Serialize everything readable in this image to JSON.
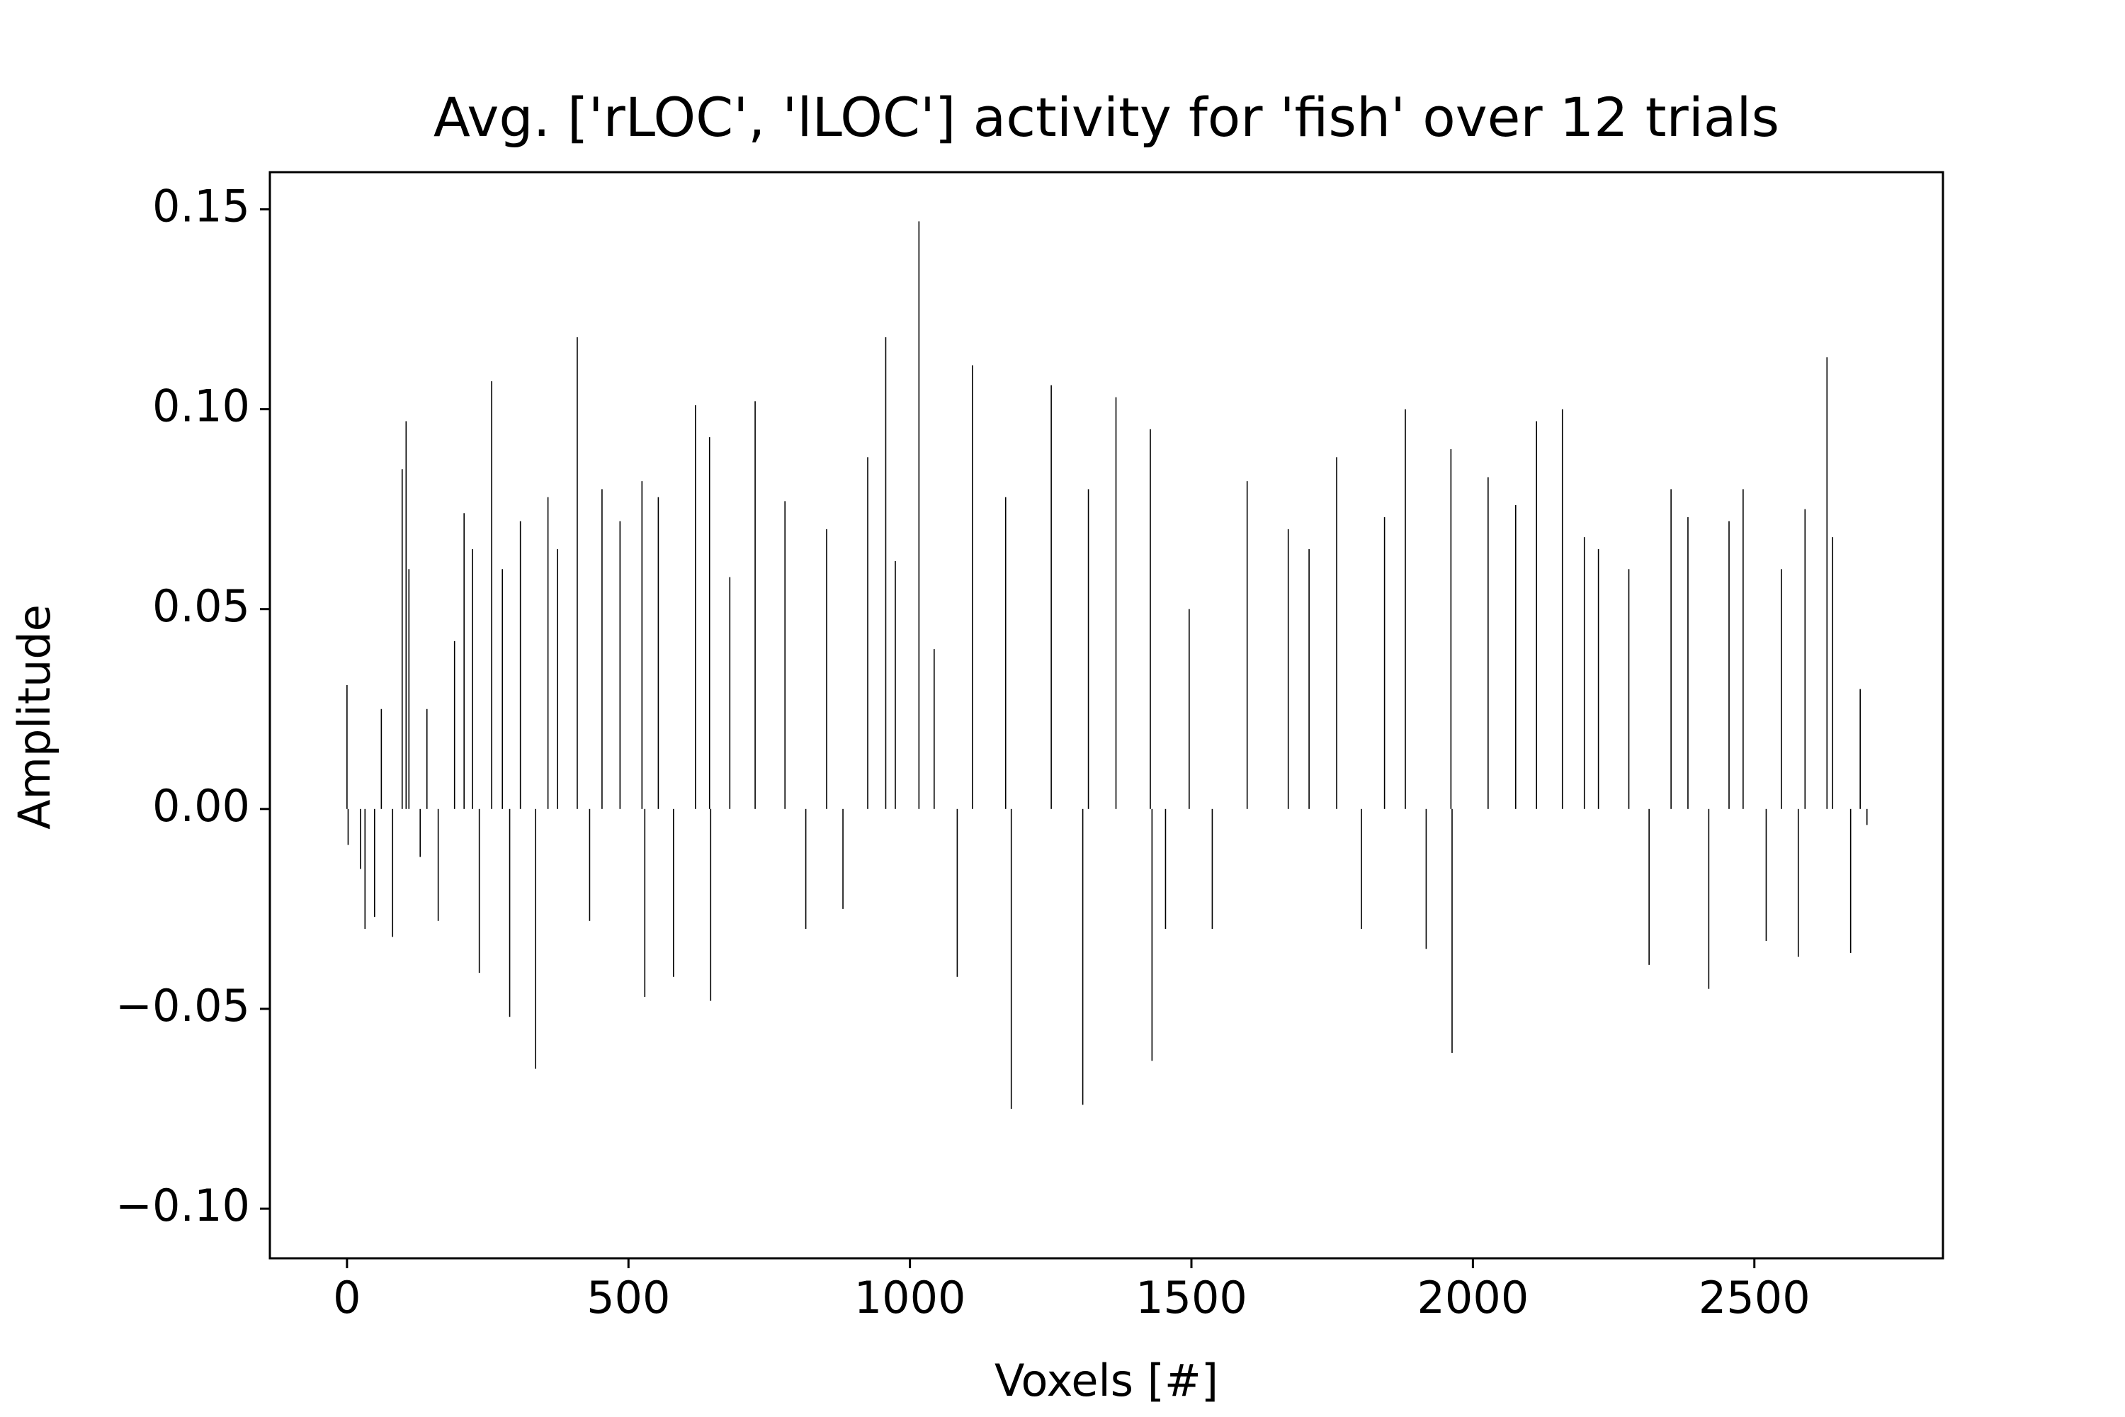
{
  "chart_data": {
    "type": "bar",
    "title": "Avg. ['rLOC', 'lLOC'] activity for 'fish' over 12 trials",
    "xlabel": "Voxels [#]",
    "ylabel": "Amplitude",
    "color": "#000000",
    "grid": false,
    "xlim": [
      -137,
      2835
    ],
    "ylim": [
      -0.1124,
      0.1593
    ],
    "xticks": [
      0,
      500,
      1000,
      1500,
      2000,
      2500
    ],
    "yticks": [
      {
        "value": -0.1,
        "label": "−0.10"
      },
      {
        "value": -0.05,
        "label": "−0.05"
      },
      {
        "value": 0,
        "label": "0.00"
      },
      0.05,
      {
        "value": 0.1,
        "label": "0.10"
      },
      0.15
    ],
    "x": [
      0,
      2,
      24,
      32,
      49,
      61,
      81,
      98,
      105,
      110,
      130,
      142,
      162,
      191,
      208,
      223,
      235,
      257,
      276,
      289,
      308,
      335,
      357,
      374,
      409,
      431,
      453,
      485,
      524,
      529,
      553,
      580,
      619,
      644,
      646,
      680,
      725,
      778,
      815,
      852,
      881,
      925,
      957,
      974,
      1016,
      1043,
      1084,
      1111,
      1170,
      1180,
      1251,
      1307,
      1317,
      1366,
      1427,
      1430,
      1454,
      1496,
      1537,
      1599,
      1672,
      1709,
      1758,
      1802,
      1843,
      1880,
      1917,
      1961,
      1963,
      2027,
      2076,
      2113,
      2159,
      2198,
      2223,
      2277,
      2313,
      2352,
      2382,
      2419,
      2455,
      2480,
      2521,
      2548,
      2578,
      2590,
      2629,
      2639,
      2671,
      2688,
      2700
    ],
    "values": [
      0.031,
      -0.009,
      -0.015,
      -0.03,
      -0.027,
      0.025,
      -0.032,
      0.085,
      0.097,
      0.06,
      -0.012,
      0.025,
      -0.028,
      0.042,
      0.074,
      0.065,
      -0.041,
      0.107,
      0.06,
      -0.052,
      0.072,
      -0.065,
      0.078,
      0.065,
      0.118,
      -0.028,
      0.08,
      0.072,
      0.082,
      -0.047,
      0.078,
      -0.042,
      0.101,
      0.093,
      -0.048,
      0.058,
      0.102,
      0.077,
      -0.03,
      0.07,
      -0.025,
      0.088,
      0.118,
      0.062,
      0.147,
      0.04,
      -0.042,
      0.111,
      0.078,
      -0.075,
      0.106,
      -0.074,
      0.08,
      0.103,
      0.095,
      -0.063,
      -0.03,
      0.05,
      -0.03,
      0.082,
      0.07,
      0.065,
      0.088,
      -0.03,
      0.073,
      0.1,
      -0.035,
      0.09,
      -0.061,
      0.083,
      0.076,
      0.097,
      0.1,
      0.068,
      0.065,
      0.06,
      -0.039,
      0.08,
      0.073,
      -0.045,
      0.072,
      0.08,
      -0.033,
      0.06,
      -0.037,
      0.075,
      0.113,
      0.068,
      -0.036,
      0.03,
      -0.004
    ]
  }
}
